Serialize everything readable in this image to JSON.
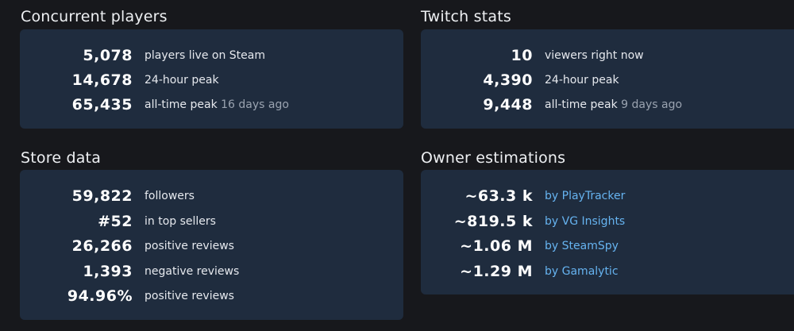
{
  "concurrent": {
    "title": "Concurrent players",
    "rows": [
      {
        "value": "5,078",
        "label": "players live on Steam",
        "note": ""
      },
      {
        "value": "14,678",
        "label": "24-hour peak",
        "note": ""
      },
      {
        "value": "65,435",
        "label": "all-time peak",
        "note": "16 days ago"
      }
    ]
  },
  "twitch": {
    "title": "Twitch stats",
    "rows": [
      {
        "value": "10",
        "label": "viewers right now",
        "note": ""
      },
      {
        "value": "4,390",
        "label": "24-hour peak",
        "note": ""
      },
      {
        "value": "9,448",
        "label": "all-time peak",
        "note": "9 days ago"
      }
    ]
  },
  "store": {
    "title": "Store data",
    "rows": [
      {
        "value": "59,822",
        "label": "followers"
      },
      {
        "value": "#52",
        "label": "in top sellers"
      },
      {
        "value": "26,266",
        "label": "positive reviews"
      },
      {
        "value": "1,393",
        "label": "negative reviews"
      },
      {
        "value": "94.96%",
        "label": "positive reviews"
      }
    ]
  },
  "owners": {
    "title": "Owner estimations",
    "rows": [
      {
        "value": "~63.3 k",
        "label": "by PlayTracker"
      },
      {
        "value": "~819.5 k",
        "label": "by VG Insights"
      },
      {
        "value": "~1.06 M",
        "label": "by SteamSpy"
      },
      {
        "value": "~1.29 M",
        "label": "by Gamalytic"
      }
    ]
  },
  "colors": {
    "background": "#17181c",
    "card": "#1f2c3e",
    "link": "#66b3f0",
    "muted": "#9aa3b0"
  }
}
